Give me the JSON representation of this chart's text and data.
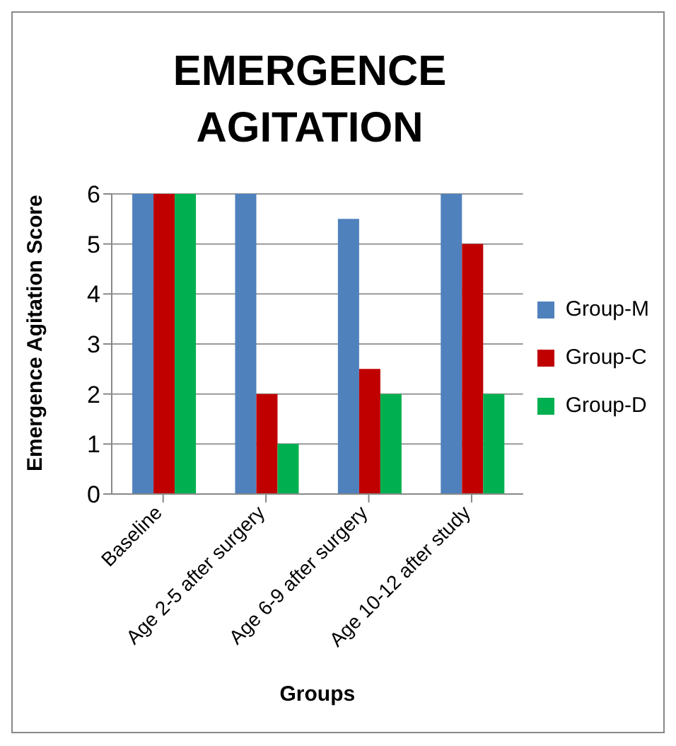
{
  "chart_data": {
    "type": "bar",
    "title": "EMERGENCE AGITATION",
    "xlabel": "Groups",
    "ylabel": "Emergence Agitation Score",
    "categories": [
      "Baseline",
      "Age 2-5 after surgery",
      "Age 6-9 after surgery",
      "Age 10-12 after study"
    ],
    "series": [
      {
        "name": "Group-M",
        "color": "#4f81bd",
        "values": [
          6,
          6,
          5.5,
          6
        ]
      },
      {
        "name": "Group-C",
        "color": "#c00000",
        "values": [
          6,
          2,
          2.5,
          5
        ]
      },
      {
        "name": "Group-D",
        "color": "#00b050",
        "values": [
          6,
          1,
          2,
          2
        ]
      }
    ],
    "ylim": [
      0,
      6
    ],
    "yticks": [
      0,
      1,
      2,
      3,
      4,
      5,
      6
    ],
    "grid": "y",
    "legend": "right"
  }
}
